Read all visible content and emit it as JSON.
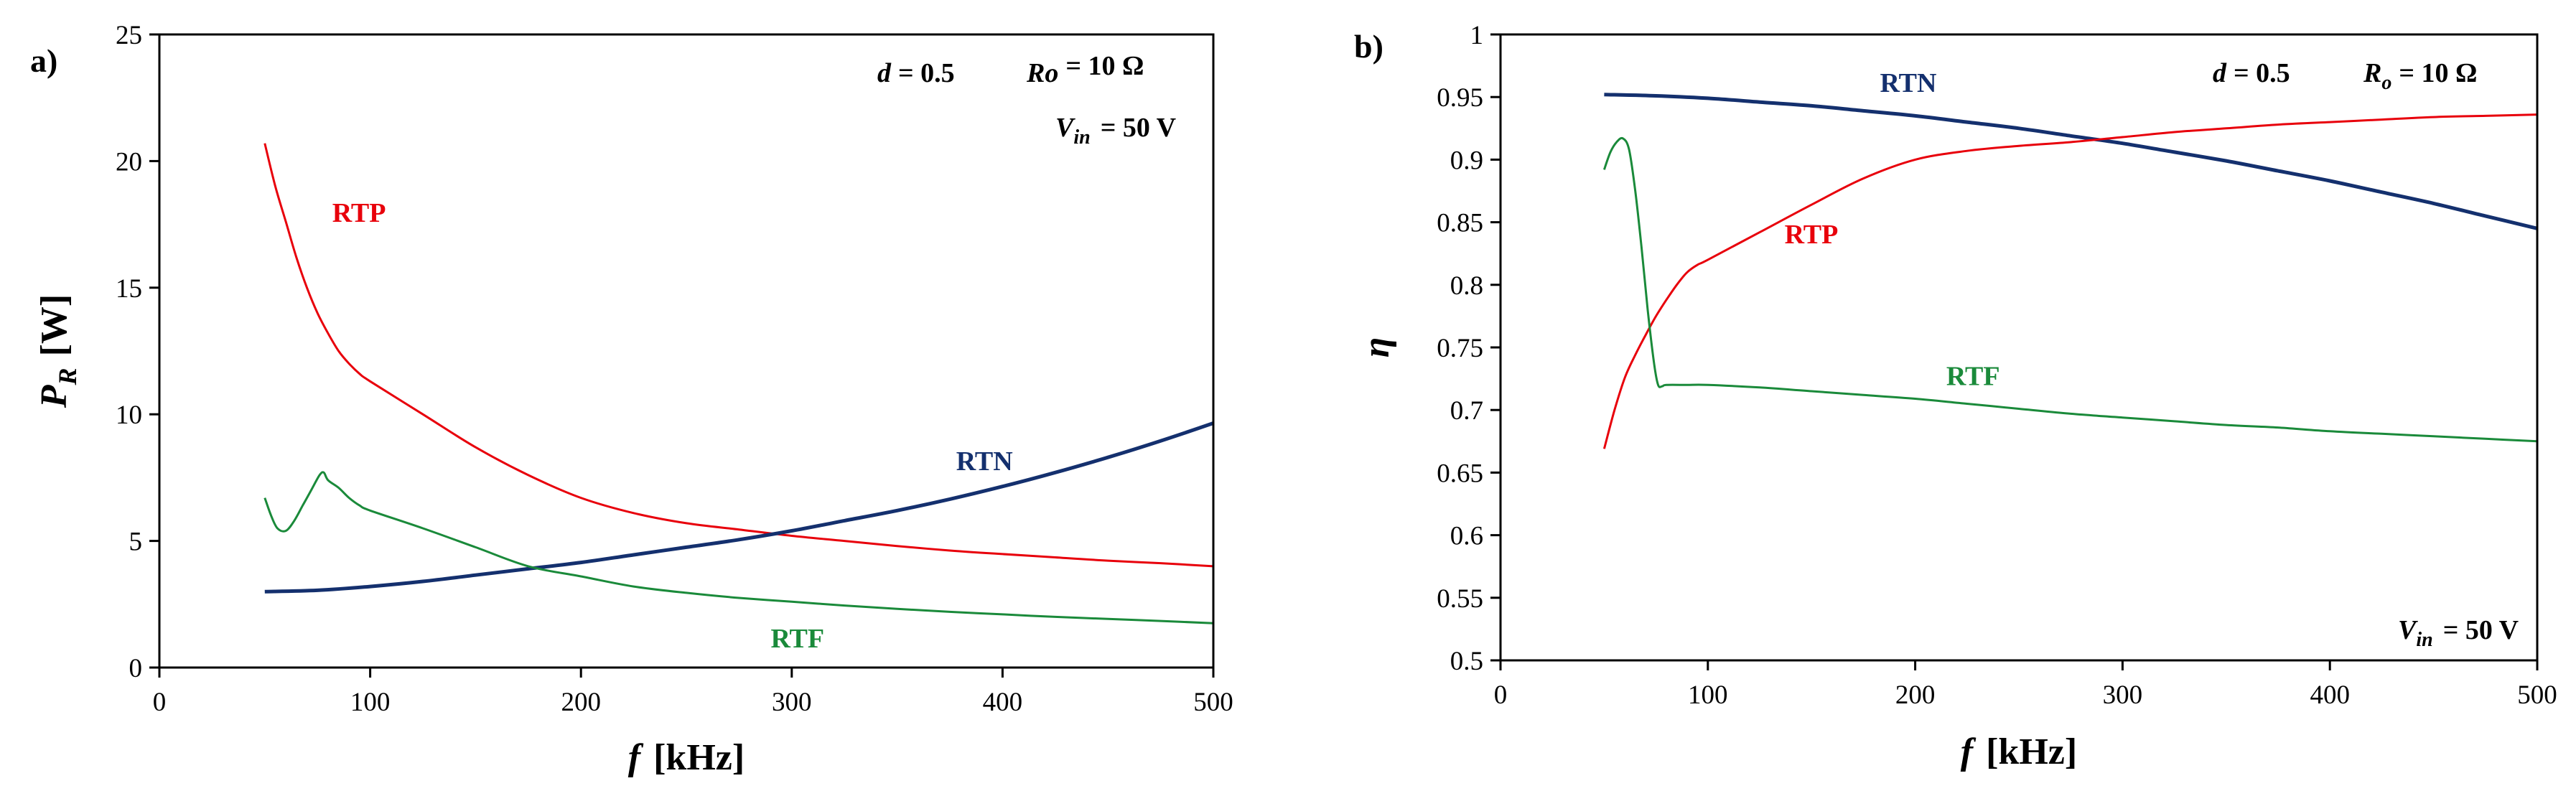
{
  "figure": {
    "panels": [
      {
        "id": "a",
        "label": "a)",
        "xlabel_var": "f",
        "xlabel_unit": "[kHz]",
        "ylabel_main": "P",
        "ylabel_sub": "R",
        "ylabel_unit": "[W]",
        "annotations": {
          "d": "d",
          "d_val": "= 0.5",
          "r": "Ro",
          "r_sub": "",
          "r_val": "= 10 Ω",
          "v": "V",
          "v_sub": "in",
          "v_val": "= 50 V"
        }
      },
      {
        "id": "b",
        "label": "b)",
        "xlabel_var": "f",
        "xlabel_unit": "[kHz]",
        "ylabel_main": "η",
        "ylabel_sub": "",
        "ylabel_unit": "",
        "annotations": {
          "d": "d",
          "d_val": "= 0.5",
          "r": "R",
          "r_sub": "o",
          "r_val": "= 10 Ω",
          "v": "V",
          "v_sub": "in",
          "v_val": "= 50 V"
        }
      }
    ]
  },
  "chart_data": [
    {
      "type": "line",
      "title": "",
      "xlabel": "f [kHz]",
      "ylabel": "P_R [W]",
      "xlim": [
        0,
        500
      ],
      "ylim": [
        0,
        25
      ],
      "xticks": [
        0,
        100,
        200,
        300,
        400,
        500
      ],
      "yticks": [
        0,
        5,
        10,
        15,
        20,
        25
      ],
      "xtick_labels": [
        "0",
        "100",
        "200",
        "300",
        "400",
        "500"
      ],
      "ytick_labels": [
        "0",
        "5",
        "10",
        "15",
        "20",
        "25"
      ],
      "series": [
        {
          "name": "RTP",
          "color": "#e8000b",
          "x": [
            50,
            55,
            60,
            65,
            70,
            75,
            80,
            85,
            90,
            95,
            100,
            125,
            150,
            175,
            200,
            225,
            250,
            275,
            300,
            325,
            350,
            375,
            400,
            425,
            450,
            475,
            500
          ],
          "y": [
            20.7,
            19.0,
            17.6,
            16.2,
            15.0,
            14.0,
            13.2,
            12.5,
            12.0,
            11.6,
            11.3,
            10.0,
            8.7,
            7.6,
            6.7,
            6.1,
            5.7,
            5.45,
            5.2,
            5.0,
            4.8,
            4.62,
            4.48,
            4.35,
            4.22,
            4.12,
            4.0
          ]
        },
        {
          "name": "RTN",
          "color": "#14306e",
          "x": [
            50,
            75,
            100,
            125,
            150,
            175,
            200,
            225,
            250,
            275,
            300,
            325,
            350,
            375,
            400,
            425,
            450,
            475,
            500
          ],
          "y": [
            3.0,
            3.05,
            3.2,
            3.4,
            3.65,
            3.9,
            4.15,
            4.45,
            4.75,
            5.05,
            5.4,
            5.8,
            6.2,
            6.65,
            7.15,
            7.7,
            8.3,
            8.95,
            9.65
          ]
        },
        {
          "name": "RTF",
          "color": "#1a8a3a",
          "x": [
            50,
            53,
            56,
            60,
            64,
            68,
            72,
            76,
            78,
            80,
            85,
            90,
            95,
            100,
            125,
            150,
            175,
            200,
            225,
            250,
            275,
            300,
            325,
            350,
            375,
            400,
            425,
            450,
            475,
            500
          ],
          "y": [
            6.7,
            6.0,
            5.5,
            5.4,
            5.8,
            6.4,
            7.0,
            7.6,
            7.7,
            7.4,
            7.1,
            6.7,
            6.4,
            6.2,
            5.5,
            4.75,
            4.0,
            3.6,
            3.2,
            2.95,
            2.75,
            2.6,
            2.45,
            2.32,
            2.2,
            2.1,
            2.0,
            1.92,
            1.84,
            1.75
          ]
        }
      ],
      "series_labels": [
        {
          "name": "RTP",
          "x": 82,
          "y": 17.6
        },
        {
          "name": "RTN",
          "x": 378,
          "y": 7.8
        },
        {
          "name": "RTF",
          "x": 290,
          "y": 0.8
        }
      ]
    },
    {
      "type": "line",
      "title": "",
      "xlabel": "f [kHz]",
      "ylabel": "η",
      "xlim": [
        0,
        500
      ],
      "ylim": [
        0.5,
        1.0
      ],
      "xticks": [
        0,
        100,
        200,
        300,
        400,
        500
      ],
      "yticks": [
        0.5,
        0.55,
        0.6,
        0.65,
        0.7,
        0.75,
        0.8,
        0.85,
        0.9,
        0.95,
        1.0
      ],
      "xtick_labels": [
        "0",
        "100",
        "200",
        "300",
        "400",
        "500"
      ],
      "ytick_labels": [
        "0.5",
        "0.55",
        "0.6",
        "0.65",
        "0.7",
        "0.75",
        "0.8",
        "0.85",
        "0.9",
        "0.95",
        "1"
      ],
      "series": [
        {
          "name": "RTN",
          "color": "#14306e",
          "x": [
            50,
            75,
            100,
            125,
            150,
            175,
            200,
            225,
            250,
            275,
            300,
            325,
            350,
            375,
            400,
            425,
            450,
            475,
            500
          ],
          "y": [
            0.952,
            0.951,
            0.949,
            0.946,
            0.943,
            0.939,
            0.935,
            0.93,
            0.925,
            0.919,
            0.913,
            0.906,
            0.899,
            0.891,
            0.883,
            0.874,
            0.865,
            0.855,
            0.845
          ]
        },
        {
          "name": "RTP",
          "color": "#e8000b",
          "x": [
            50,
            55,
            60,
            65,
            70,
            75,
            80,
            85,
            90,
            95,
            100,
            125,
            150,
            175,
            200,
            225,
            250,
            275,
            300,
            325,
            350,
            375,
            400,
            425,
            450,
            475,
            500
          ],
          "y": [
            0.669,
            0.7,
            0.726,
            0.744,
            0.76,
            0.775,
            0.788,
            0.8,
            0.81,
            0.816,
            0.82,
            0.842,
            0.864,
            0.885,
            0.9,
            0.907,
            0.911,
            0.914,
            0.918,
            0.922,
            0.925,
            0.928,
            0.93,
            0.932,
            0.934,
            0.935,
            0.936
          ]
        },
        {
          "name": "RTF",
          "color": "#1a8a3a",
          "x": [
            50,
            53,
            56,
            59,
            62,
            65,
            68,
            71,
            74,
            76,
            78,
            80,
            90,
            100,
            125,
            150,
            175,
            200,
            225,
            250,
            275,
            300,
            325,
            350,
            375,
            400,
            425,
            450,
            475,
            500
          ],
          "y": [
            0.892,
            0.906,
            0.914,
            0.917,
            0.908,
            0.875,
            0.83,
            0.78,
            0.738,
            0.72,
            0.719,
            0.72,
            0.72,
            0.72,
            0.718,
            0.715,
            0.712,
            0.709,
            0.705,
            0.701,
            0.697,
            0.694,
            0.691,
            0.688,
            0.686,
            0.683,
            0.681,
            0.679,
            0.677,
            0.675
          ]
        }
      ],
      "series_labels": [
        {
          "name": "RTN",
          "x": 183,
          "y": 0.954
        },
        {
          "name": "RTP",
          "x": 137,
          "y": 0.833
        },
        {
          "name": "RTF",
          "x": 215,
          "y": 0.72
        }
      ]
    }
  ]
}
